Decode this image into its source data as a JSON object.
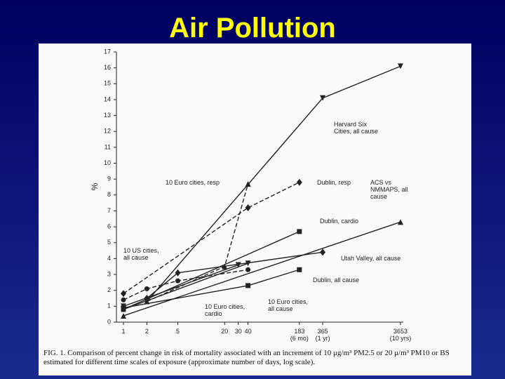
{
  "title": "Air Pollution",
  "chart_data": {
    "type": "line",
    "ylabel": "%",
    "xscale": "log",
    "xlim": [
      1,
      3653
    ],
    "ylim": [
      0,
      17
    ],
    "yticks": [
      0,
      1,
      2,
      3,
      4,
      5,
      6,
      7,
      8,
      9,
      10,
      11,
      12,
      13,
      14,
      15,
      16,
      17
    ],
    "xticks": [
      1,
      2,
      5,
      20,
      30,
      40,
      {
        "value": 183,
        "label": "183\n(6 mo)"
      },
      {
        "value": 365,
        "label": "365\n(1 yr)"
      },
      {
        "value": 3653,
        "label": "3653\n(10 yrs)"
      }
    ],
    "series": [
      {
        "name": "Harvard Six Cities, all cause",
        "color": "#222222",
        "marker": "down",
        "dash": false,
        "x": [
          2,
          365,
          3653
        ],
        "y": [
          1.3,
          14.1,
          16.1
        ]
      },
      {
        "name": "10 Euro cities, resp",
        "color": "#222222",
        "marker": "up",
        "dash": true,
        "x": [
          2,
          20,
          40
        ],
        "y": [
          1.3,
          3.5,
          8.7
        ]
      },
      {
        "name": "Dublin, resp",
        "color": "#222222",
        "marker": "diamond",
        "dash": true,
        "x": [
          1,
          40,
          183
        ],
        "y": [
          1.8,
          7.2,
          8.8
        ]
      },
      {
        "name": "ACS vs NMMAPS, all cause",
        "color": "#222222",
        "marker": "up",
        "dash": false,
        "x": [
          1,
          3653
        ],
        "y": [
          0.4,
          6.3
        ]
      },
      {
        "name": "Dublin, cardio",
        "color": "#222222",
        "marker": "square",
        "dash": false,
        "x": [
          1,
          183
        ],
        "y": [
          0.8,
          5.7
        ]
      },
      {
        "name": "10 US cities, all cause",
        "color": "#222222",
        "marker": "circle",
        "dash": true,
        "x": [
          1,
          2,
          5,
          40
        ],
        "y": [
          1.4,
          2.1,
          2.6,
          3.3
        ]
      },
      {
        "name": "Utah Valley, all cause",
        "color": "#222222",
        "marker": "diamond",
        "dash": false,
        "x": [
          2,
          5,
          365
        ],
        "y": [
          1.5,
          3.1,
          4.4
        ]
      },
      {
        "name": "Dublin, all cause",
        "color": "#222222",
        "marker": "square",
        "dash": false,
        "x": [
          1,
          40,
          183
        ],
        "y": [
          0.9,
          2.3,
          3.3
        ]
      },
      {
        "name": "10 Euro cities, cardio",
        "color": "#222222",
        "marker": "down",
        "dash": false,
        "x": [
          1,
          30
        ],
        "y": [
          1.0,
          3.6
        ]
      },
      {
        "name": "10 Euro cities, all cause",
        "color": "#222222",
        "marker": "down",
        "dash": false,
        "x": [
          1,
          40
        ],
        "y": [
          0.8,
          3.7
        ]
      }
    ],
    "caption": "FIG. 1. Comparison of percent change in risk of mortality associated with an increment of 10 μg/m³ PM2.5 or 20 μ/m³ PM10 or BS estimated for different time scales of exposure (approximate number of days, log scale)."
  }
}
